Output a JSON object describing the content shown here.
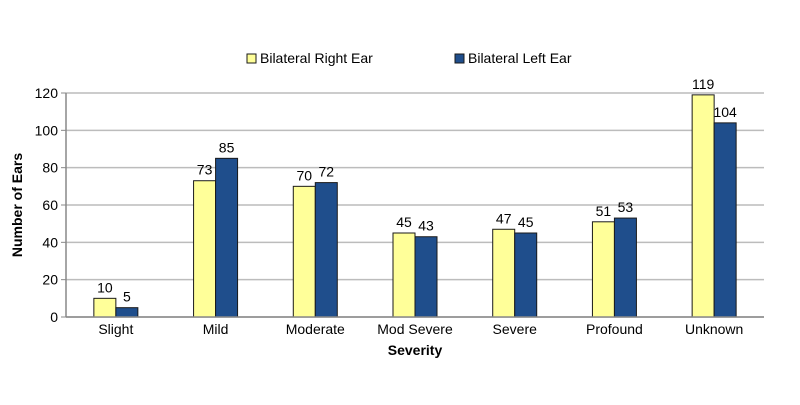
{
  "chart_data": {
    "type": "bar",
    "title": "",
    "xlabel": "Severity",
    "ylabel": "Number of Ears",
    "ylim": [
      0,
      120
    ],
    "yticks": [
      0,
      20,
      40,
      60,
      80,
      100,
      120
    ],
    "grid": true,
    "legend_position": "top",
    "categories": [
      "Slight",
      "Mild",
      "Moderate",
      "Mod Severe",
      "Severe",
      "Profound",
      "Unknown"
    ],
    "series": [
      {
        "name": "Bilateral Right Ear",
        "color": "#FFFF99",
        "values": [
          10,
          73,
          70,
          45,
          47,
          51,
          119
        ]
      },
      {
        "name": "Bilateral Left Ear",
        "color": "#1F4E8C",
        "values": [
          5,
          85,
          72,
          43,
          45,
          53,
          104
        ]
      }
    ]
  }
}
